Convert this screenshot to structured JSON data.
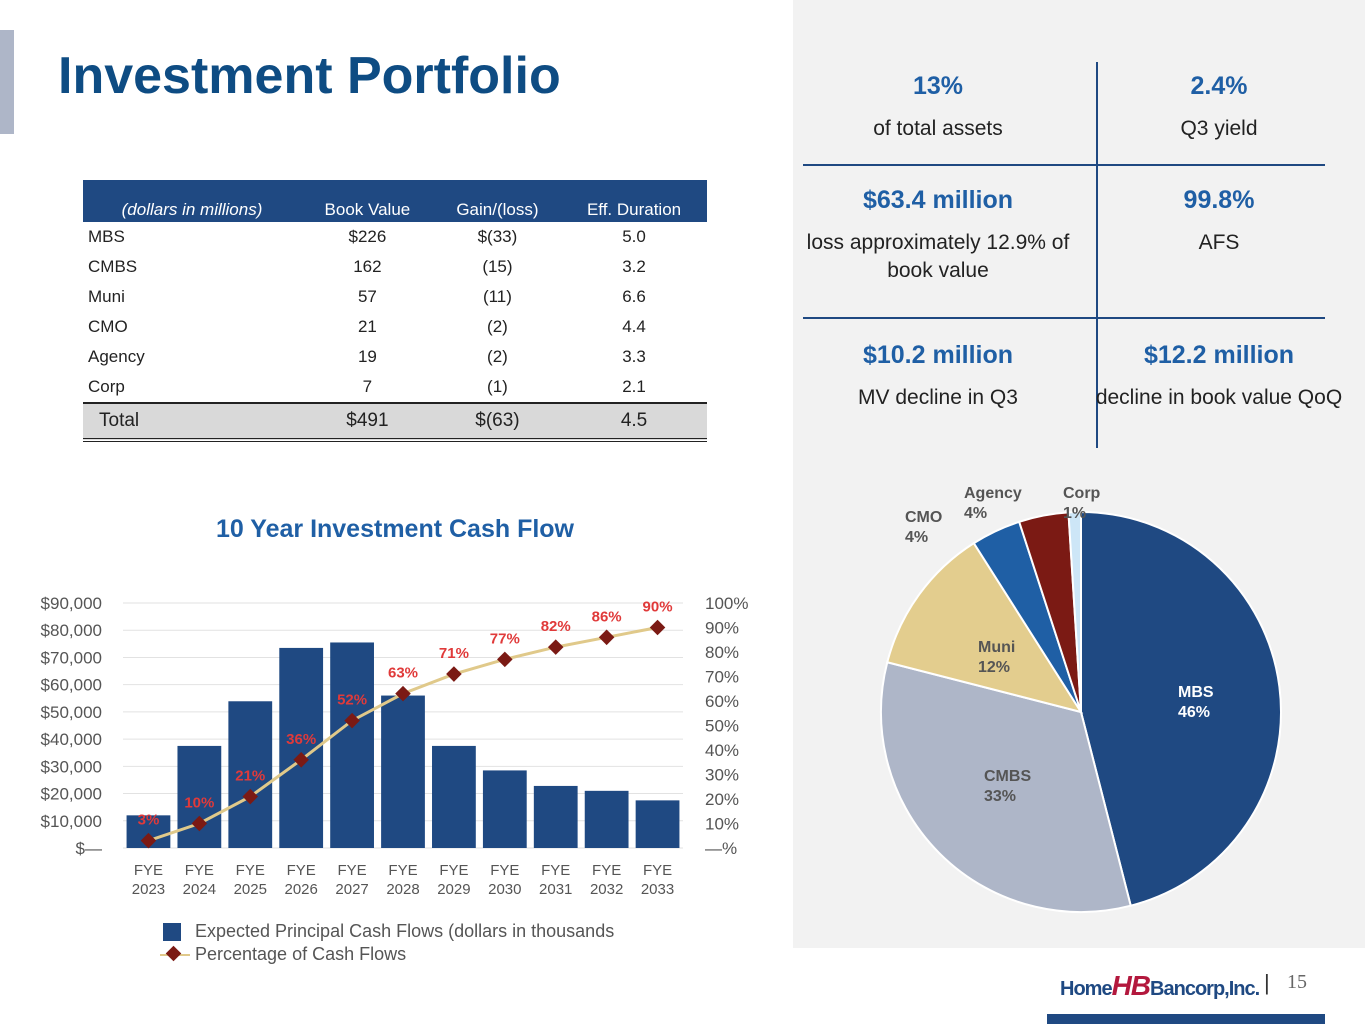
{
  "title": "Investment Portfolio",
  "table": {
    "headers": [
      "(dollars in millions)",
      "Book Value",
      "Gain/(loss)",
      "Eff. Duration"
    ],
    "rows": [
      [
        "MBS",
        "$226",
        "$(33)",
        "5.0"
      ],
      [
        "CMBS",
        "162",
        "(15)",
        "3.2"
      ],
      [
        "Muni",
        "57",
        "(11)",
        "6.6"
      ],
      [
        "CMO",
        "21",
        "(2)",
        "4.4"
      ],
      [
        "Agency",
        "19",
        "(2)",
        "3.3"
      ],
      [
        "Corp",
        "7",
        "(1)",
        "2.1"
      ]
    ],
    "total": [
      "Total",
      "$491",
      "$(63)",
      "4.5"
    ]
  },
  "metrics": [
    {
      "big": "13%",
      "small": "of total assets"
    },
    {
      "big": "2.4%",
      "small": "Q3 yield"
    },
    {
      "big": "$63.4 million",
      "small": "loss approximately 12.9% of book value"
    },
    {
      "big": "99.8%",
      "small": "AFS"
    },
    {
      "big": "$10.2 million",
      "small": "MV decline in Q3"
    },
    {
      "big": "$12.2 million",
      "small": "decline in book value QoQ"
    }
  ],
  "chart_data": [
    {
      "type": "bar",
      "title": "10 Year Investment Cash Flow",
      "categories": [
        "FYE 2023",
        "FYE 2024",
        "FYE 2025",
        "FYE 2026",
        "FYE 2027",
        "FYE 2028",
        "FYE 2029",
        "FYE 2030",
        "FYE 2031",
        "FYE 2032",
        "FYE 2033"
      ],
      "series": [
        {
          "name": "Expected Principal Cash Flows (dollars in thousands",
          "type": "bar",
          "axis": "left",
          "values": [
            12000,
            37500,
            53900,
            73500,
            75500,
            56000,
            37500,
            28500,
            22800,
            21000,
            17500
          ]
        },
        {
          "name": "Percentage of Cash Flows",
          "type": "line",
          "axis": "right",
          "values": [
            3,
            10,
            21,
            36,
            52,
            63,
            71,
            77,
            82,
            86,
            90
          ],
          "labels": [
            "3%",
            "10%",
            "21%",
            "36%",
            "52%",
            "63%",
            "71%",
            "77%",
            "82%",
            "86%",
            "90%"
          ]
        }
      ],
      "y_left": {
        "range": [
          0,
          90000
        ],
        "ticks": [
          "$90,000",
          "$80,000",
          "$70,000",
          "$60,000",
          "$50,000",
          "$40,000",
          "$30,000",
          "$20,000",
          "$10,000",
          "$—"
        ]
      },
      "y_right": {
        "range": [
          0,
          100
        ],
        "ticks": [
          "100%",
          "90%",
          "80%",
          "70%",
          "60%",
          "50%",
          "40%",
          "30%",
          "20%",
          "10%",
          "—%"
        ]
      },
      "grid": true,
      "legend_position": "bottom",
      "colors": {
        "bar": "#1f4982",
        "line": "#e0c98a",
        "marker": "#7b1a14",
        "label": "#e03a3a"
      }
    },
    {
      "type": "pie",
      "slices": [
        {
          "label": "MBS",
          "pct": "46%",
          "value": 46,
          "color": "#1f4982"
        },
        {
          "label": "CMBS",
          "pct": "33%",
          "value": 33,
          "color": "#aeb6c8"
        },
        {
          "label": "Muni",
          "pct": "12%",
          "value": 12,
          "color": "#e3cd8e"
        },
        {
          "label": "CMO",
          "pct": "4%",
          "value": 4,
          "color": "#1f5fa5"
        },
        {
          "label": "Agency",
          "pct": "4%",
          "value": 4,
          "color": "#7b1a14"
        },
        {
          "label": "Corp",
          "pct": "1%",
          "value": 1,
          "color": "#cde6f7"
        }
      ]
    }
  ],
  "footer": {
    "logo_left": "Home",
    "logo_mid": "HB",
    "logo_right": "Bancorp,Inc.",
    "separator": "|",
    "page_number": "15"
  }
}
